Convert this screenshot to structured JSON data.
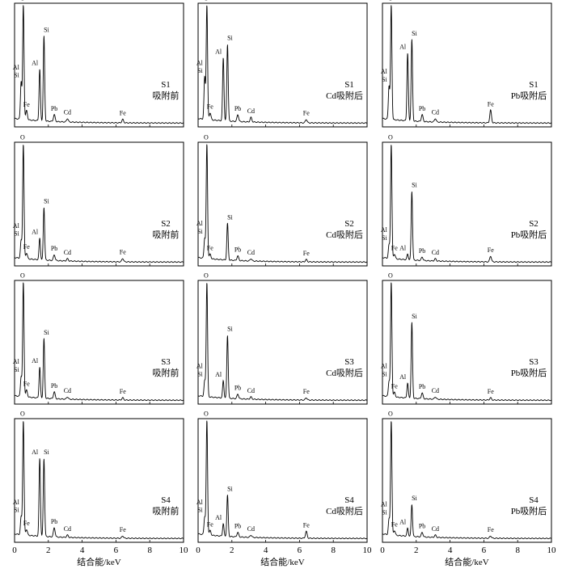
{
  "x_axis": {
    "label": "结合能/keV",
    "ticks": [
      0,
      2,
      4,
      6,
      8,
      10
    ],
    "range": [
      0,
      10
    ]
  },
  "columns": [
    "吸附前",
    "Cd吸附后",
    "Pb吸附后"
  ],
  "chart_data": [
    {
      "type": "line",
      "sample": "S1",
      "condition": "吸附前",
      "xlim": [
        0,
        10
      ],
      "peaks": [
        {
          "label": "O",
          "x": 0.52,
          "y": 100
        },
        {
          "label": "Si",
          "x": 1.74,
          "y": 74
        },
        {
          "label": "Al",
          "x": 1.49,
          "y": 45
        },
        {
          "label": "Al",
          "x": 0.38,
          "y": 17
        },
        {
          "label": "Si",
          "x": 0.4,
          "y": 17
        },
        {
          "label": "Fe",
          "x": 0.71,
          "y": 8
        },
        {
          "label": "Pb",
          "x": 2.35,
          "y": 6
        },
        {
          "label": "Cd",
          "x": 3.13,
          "y": 3
        },
        {
          "label": "Fe",
          "x": 6.4,
          "y": 3
        }
      ]
    },
    {
      "type": "line",
      "sample": "S1",
      "condition": "Cd吸附后",
      "xlim": [
        0,
        10
      ],
      "peaks": [
        {
          "label": "O",
          "x": 0.52,
          "y": 100
        },
        {
          "label": "Si",
          "x": 1.74,
          "y": 67
        },
        {
          "label": "Al",
          "x": 1.49,
          "y": 55
        },
        {
          "label": "Al",
          "x": 0.38,
          "y": 19
        },
        {
          "label": "Si",
          "x": 0.4,
          "y": 19
        },
        {
          "label": "Fe",
          "x": 0.71,
          "y": 6
        },
        {
          "label": "Pb",
          "x": 2.35,
          "y": 6
        },
        {
          "label": "Cd",
          "x": 3.13,
          "y": 4
        },
        {
          "label": "Fe",
          "x": 6.4,
          "y": 3
        }
      ]
    },
    {
      "type": "line",
      "sample": "S1",
      "condition": "Pb吸附后",
      "xlim": [
        0,
        10
      ],
      "peaks": [
        {
          "label": "O",
          "x": 0.52,
          "y": 100
        },
        {
          "label": "Si",
          "x": 1.74,
          "y": 71
        },
        {
          "label": "Al",
          "x": 1.49,
          "y": 59
        },
        {
          "label": "Al",
          "x": 0.38,
          "y": 15
        },
        {
          "label": "Si",
          "x": 0.4,
          "y": 15
        },
        {
          "label": "Pb",
          "x": 2.35,
          "y": 6
        },
        {
          "label": "Cd",
          "x": 3.13,
          "y": 3
        },
        {
          "label": "Fe",
          "x": 6.4,
          "y": 11
        }
      ]
    },
    {
      "type": "line",
      "sample": "S2",
      "condition": "吸附前",
      "xlim": [
        0,
        10
      ],
      "peaks": [
        {
          "label": "O",
          "x": 0.52,
          "y": 100
        },
        {
          "label": "Si",
          "x": 1.74,
          "y": 46
        },
        {
          "label": "Al",
          "x": 1.49,
          "y": 19
        },
        {
          "label": "Al",
          "x": 0.38,
          "y": 8
        },
        {
          "label": "Si",
          "x": 0.4,
          "y": 8
        },
        {
          "label": "Fe",
          "x": 0.71,
          "y": 5
        },
        {
          "label": "Pb",
          "x": 2.35,
          "y": 5
        },
        {
          "label": "Cd",
          "x": 3.13,
          "y": 2
        },
        {
          "label": "Fe",
          "x": 6.4,
          "y": 3
        }
      ]
    },
    {
      "type": "line",
      "sample": "S2",
      "condition": "Cd吸附后",
      "xlim": [
        0,
        10
      ],
      "peaks": [
        {
          "label": "O",
          "x": 0.52,
          "y": 100
        },
        {
          "label": "Si",
          "x": 1.74,
          "y": 32
        },
        {
          "label": "Al",
          "x": 0.38,
          "y": 9
        },
        {
          "label": "Si",
          "x": 0.4,
          "y": 9
        },
        {
          "label": "Fe",
          "x": 0.71,
          "y": 4
        },
        {
          "label": "Pb",
          "x": 2.35,
          "y": 4
        },
        {
          "label": "Cd",
          "x": 3.13,
          "y": 2
        },
        {
          "label": "Fe",
          "x": 6.4,
          "y": 2
        }
      ]
    },
    {
      "type": "line",
      "sample": "S2",
      "condition": "Pb吸附后",
      "xlim": [
        0,
        10
      ],
      "peaks": [
        {
          "label": "O",
          "x": 0.52,
          "y": 100
        },
        {
          "label": "Si",
          "x": 1.74,
          "y": 60
        },
        {
          "label": "Al",
          "x": 0.38,
          "y": 6
        },
        {
          "label": "Si",
          "x": 0.4,
          "y": 6
        },
        {
          "label": "Fe",
          "x": 0.71,
          "y": 4
        },
        {
          "label": "Al",
          "x": 1.49,
          "y": 5
        },
        {
          "label": "Pb",
          "x": 2.35,
          "y": 3
        },
        {
          "label": "Cd",
          "x": 3.13,
          "y": 2
        },
        {
          "label": "Fe",
          "x": 6.4,
          "y": 5
        }
      ]
    },
    {
      "type": "line",
      "sample": "S3",
      "condition": "吸附前",
      "xlim": [
        0,
        10
      ],
      "peaks": [
        {
          "label": "O",
          "x": 0.52,
          "y": 100
        },
        {
          "label": "Si",
          "x": 1.74,
          "y": 52
        },
        {
          "label": "Al",
          "x": 1.49,
          "y": 27
        },
        {
          "label": "Al",
          "x": 0.38,
          "y": 9
        },
        {
          "label": "Si",
          "x": 0.4,
          "y": 9
        },
        {
          "label": "Fe",
          "x": 0.71,
          "y": 6
        },
        {
          "label": "Pb",
          "x": 2.35,
          "y": 6
        },
        {
          "label": "Cd",
          "x": 3.13,
          "y": 2
        },
        {
          "label": "Fe",
          "x": 6.4,
          "y": 2
        }
      ]
    },
    {
      "type": "line",
      "sample": "S3",
      "condition": "Cd吸附后",
      "xlim": [
        0,
        10
      ],
      "peaks": [
        {
          "label": "O",
          "x": 0.52,
          "y": 100
        },
        {
          "label": "Si",
          "x": 1.74,
          "y": 55
        },
        {
          "label": "Al",
          "x": 1.49,
          "y": 15
        },
        {
          "label": "Al",
          "x": 0.38,
          "y": 7
        },
        {
          "label": "Si",
          "x": 0.4,
          "y": 7
        },
        {
          "label": "Pb",
          "x": 2.35,
          "y": 4
        },
        {
          "label": "Cd",
          "x": 3.13,
          "y": 2
        },
        {
          "label": "Fe",
          "x": 6.4,
          "y": 2
        }
      ]
    },
    {
      "type": "line",
      "sample": "S3",
      "condition": "Pb吸附后",
      "xlim": [
        0,
        10
      ],
      "peaks": [
        {
          "label": "O",
          "x": 0.52,
          "y": 100
        },
        {
          "label": "Si",
          "x": 1.74,
          "y": 66
        },
        {
          "label": "Al",
          "x": 1.49,
          "y": 13
        },
        {
          "label": "Al",
          "x": 0.38,
          "y": 7
        },
        {
          "label": "Si",
          "x": 0.4,
          "y": 7
        },
        {
          "label": "Fe",
          "x": 0.71,
          "y": 4
        },
        {
          "label": "Pb",
          "x": 2.35,
          "y": 5
        },
        {
          "label": "Cd",
          "x": 3.13,
          "y": 2
        },
        {
          "label": "Fe",
          "x": 6.4,
          "y": 2
        }
      ]
    },
    {
      "type": "line",
      "sample": "S4",
      "condition": "吸附前",
      "xlim": [
        0,
        10
      ],
      "peaks": [
        {
          "label": "O",
          "x": 0.52,
          "y": 100
        },
        {
          "label": "Si",
          "x": 1.74,
          "y": 68
        },
        {
          "label": "Al",
          "x": 1.49,
          "y": 68
        },
        {
          "label": "Al",
          "x": 0.38,
          "y": 8
        },
        {
          "label": "Si",
          "x": 0.4,
          "y": 8
        },
        {
          "label": "Fe",
          "x": 0.71,
          "y": 5
        },
        {
          "label": "Pb",
          "x": 2.35,
          "y": 8
        },
        {
          "label": "Cd",
          "x": 3.13,
          "y": 2
        },
        {
          "label": "Fe",
          "x": 6.4,
          "y": 2
        }
      ]
    },
    {
      "type": "line",
      "sample": "S4",
      "condition": "Cd吸附后",
      "xlim": [
        0,
        10
      ],
      "peaks": [
        {
          "label": "O",
          "x": 0.52,
          "y": 100
        },
        {
          "label": "Si",
          "x": 1.74,
          "y": 36
        },
        {
          "label": "Al",
          "x": 1.49,
          "y": 11
        },
        {
          "label": "Al",
          "x": 0.38,
          "y": 8
        },
        {
          "label": "Si",
          "x": 0.4,
          "y": 8
        },
        {
          "label": "Fe",
          "x": 0.71,
          "y": 4
        },
        {
          "label": "Pb",
          "x": 2.35,
          "y": 4
        },
        {
          "label": "Cd",
          "x": 3.13,
          "y": 2
        },
        {
          "label": "Fe",
          "x": 6.4,
          "y": 6
        }
      ]
    },
    {
      "type": "line",
      "sample": "S4",
      "condition": "Pb吸附后",
      "xlim": [
        0,
        10
      ],
      "peaks": [
        {
          "label": "O",
          "x": 0.52,
          "y": 100
        },
        {
          "label": "Si",
          "x": 1.74,
          "y": 28
        },
        {
          "label": "Al",
          "x": 1.49,
          "y": 7
        },
        {
          "label": "Al",
          "x": 0.38,
          "y": 7
        },
        {
          "label": "Si",
          "x": 0.4,
          "y": 7
        },
        {
          "label": "Fe",
          "x": 0.71,
          "y": 4
        },
        {
          "label": "Pb",
          "x": 2.35,
          "y": 4
        },
        {
          "label": "Cd",
          "x": 3.13,
          "y": 2
        },
        {
          "label": "Fe",
          "x": 6.4,
          "y": 2
        }
      ]
    }
  ]
}
